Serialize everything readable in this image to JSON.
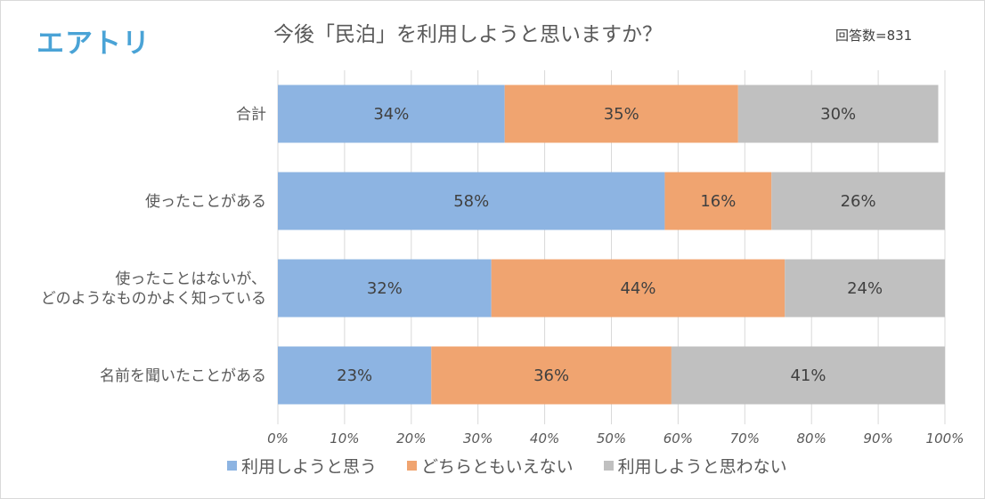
{
  "logo": "エアトリ",
  "respondents": "回答数=831",
  "chart_data": {
    "type": "bar",
    "orientation": "horizontal",
    "stacked": true,
    "title": "今後「民泊」を利用しようと思いますか？",
    "categories": [
      [
        "合計"
      ],
      [
        "使ったことがある"
      ],
      [
        "使ったことはないが、",
        "どのようなものかよく知っている"
      ],
      [
        "名前を聞いたことがある"
      ]
    ],
    "series": [
      {
        "name": "利用しようと思う",
        "color": "#8db4e2",
        "values": [
          34,
          58,
          32,
          23
        ]
      },
      {
        "name": "どちらともいえない",
        "color": "#f0a470",
        "values": [
          35,
          16,
          44,
          36
        ]
      },
      {
        "name": "利用しようと思わない",
        "color": "#c0c0c0",
        "values": [
          30,
          26,
          24,
          41
        ]
      }
    ],
    "data_labels": [
      [
        "34%",
        "35%",
        "30%"
      ],
      [
        "58%",
        "16%",
        "26%"
      ],
      [
        "32%",
        "44%",
        "24%"
      ],
      [
        "23%",
        "36%",
        "41%"
      ]
    ],
    "xlim": [
      0,
      100
    ],
    "x_ticks": [
      "0%",
      "10%",
      "20%",
      "30%",
      "40%",
      "50%",
      "60%",
      "70%",
      "80%",
      "90%",
      "100%"
    ],
    "grid": true,
    "legend_position": "bottom"
  }
}
